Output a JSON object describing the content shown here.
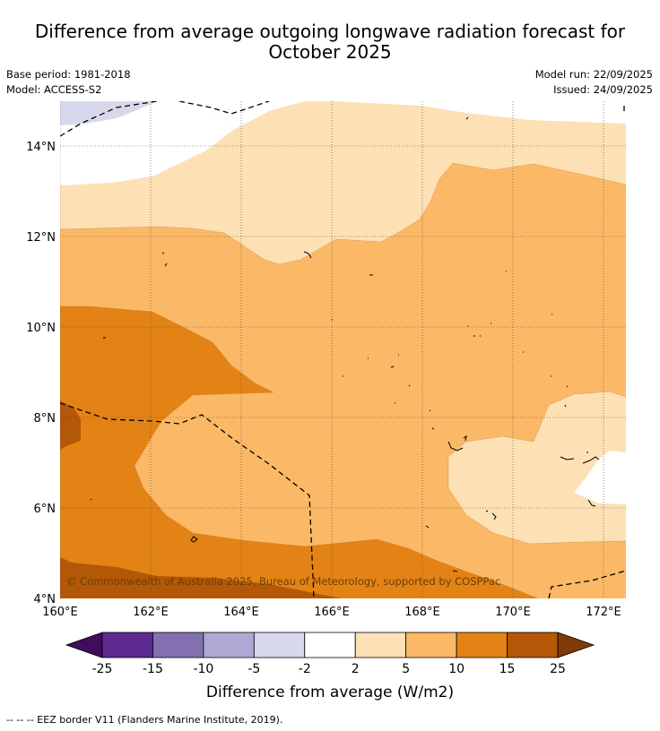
{
  "title_line1": "Difference from average outgoing longwave radiation forecast for",
  "title_line2": "October 2025",
  "base_period": "Base period: 1981-2018",
  "model": "Model: ACCESS-S2",
  "model_run": "Model run: 22/09/2025",
  "issued": "Issued: 24/09/2025",
  "lat_labels": [
    "14°N",
    "12°N",
    "10°N",
    "8°N",
    "6°N",
    "4°N"
  ],
  "lon_labels": [
    "160°E",
    "162°E",
    "164°E",
    "166°E",
    "168°E",
    "170°E",
    "172°E"
  ],
  "copyright": "© Commonwealth of Australia 2025, Bureau of Meteorology, supported by COSPPac",
  "legend": {
    "colors": [
      "#3f0d5c",
      "#5c2a90",
      "#8270b0",
      "#b0a8d4",
      "#d8d8ec",
      "#ffffff",
      "#fde0b4",
      "#fbb866",
      "#e38315",
      "#b35806",
      "#7f3b08"
    ],
    "tick_labels": [
      "-25",
      "-15",
      "-10",
      "-5",
      "-2",
      "2",
      "5",
      "10",
      "15",
      "25"
    ],
    "label": "Difference from average (W/m2)"
  },
  "footnote": "-- -- -- EEZ border V11 (Flanders Marine Institute, 2019)."
}
